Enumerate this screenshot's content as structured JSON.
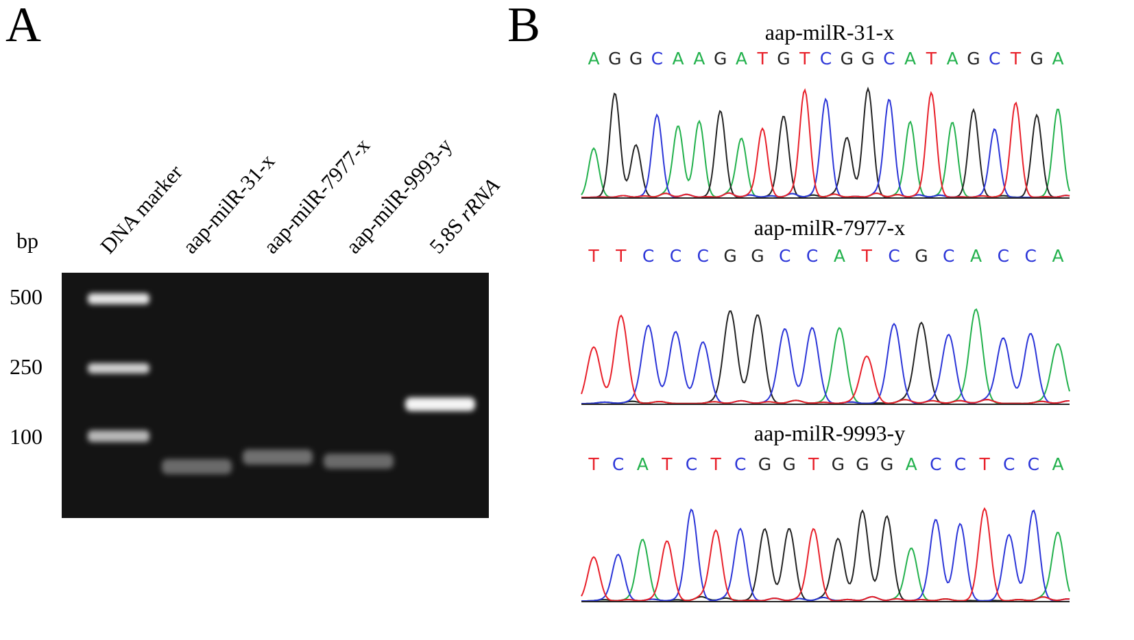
{
  "panel_a": {
    "label": "A",
    "unit": "bp",
    "lanes": [
      {
        "parts": [
          {
            "text": "DNA marker"
          }
        ]
      },
      {
        "parts": [
          {
            "text": "aap-milR-31-x"
          }
        ]
      },
      {
        "parts": [
          {
            "text": "aap-milR-7977-x"
          }
        ]
      },
      {
        "parts": [
          {
            "text": "aap-milR-9993-y"
          }
        ]
      },
      {
        "parts": [
          {
            "text": "5.8S"
          },
          {
            "text": "rRNA",
            "italic": true
          }
        ]
      }
    ],
    "marker_labels": [
      "500",
      "250",
      "100"
    ]
  },
  "panel_b": {
    "label": "B",
    "base_colors": {
      "A": "#22b14c",
      "G": "#222222",
      "C": "#2b35d8",
      "T": "#e8202a"
    },
    "traces": [
      {
        "title": "aap-milR-31-x",
        "sequence": [
          "A",
          "G",
          "G",
          "C",
          "A",
          "A",
          "G",
          "A",
          "T",
          "G",
          "T",
          "C",
          "G",
          "G",
          "C",
          "A",
          "T",
          "A",
          "G",
          "C",
          "T",
          "G",
          "A"
        ]
      },
      {
        "title": "aap-milR-7977-x",
        "sequence": [
          "T",
          "T",
          "C",
          "C",
          "C",
          "G",
          "G",
          "C",
          "C",
          "A",
          "T",
          "C",
          "G",
          "C",
          "A",
          "C",
          "C",
          "A"
        ]
      },
      {
        "title": "aap-milR-9993-y",
        "sequence": [
          "T",
          "C",
          "A",
          "T",
          "C",
          "T",
          "C",
          "G",
          "G",
          "T",
          "G",
          "G",
          "G",
          "A",
          "C",
          "C",
          "T",
          "C",
          "C",
          "A"
        ]
      }
    ]
  }
}
